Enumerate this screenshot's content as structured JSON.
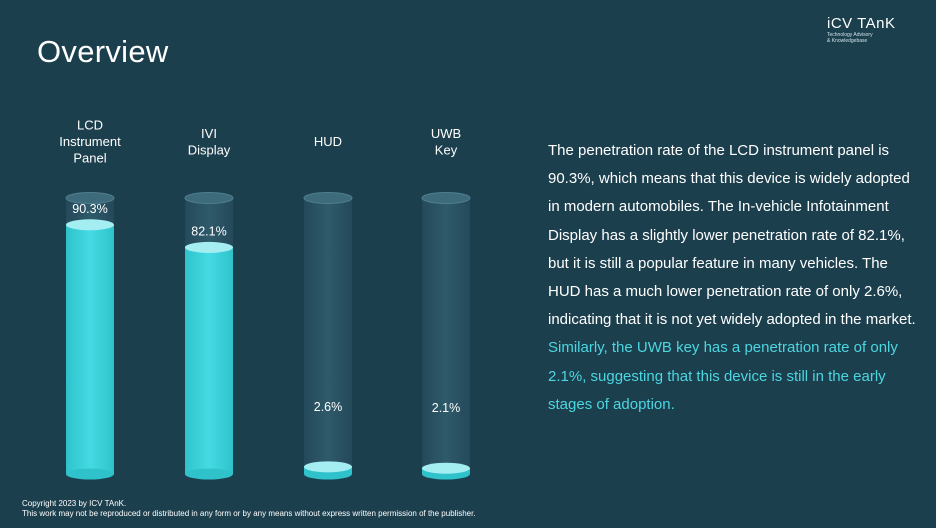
{
  "page": {
    "title": "Overview",
    "logo": {
      "name": "iCV TAnK",
      "tagline_line1": "Technology Advisory",
      "tagline_line2": "& Knowledgebase"
    }
  },
  "description": {
    "part1": "The penetration rate of the LCD instrument panel is 90.3%, which means that this device is widely adopted in modern automobiles. The In-vehicle Infotainment Display has a slightly lower penetration rate of 82.1%, but it is still a popular feature in many vehicles. The HUD has a much lower penetration rate of only 2.6%, indicating that it is not yet widely adopted in the market.",
    "part2": "Similarly, the UWB key has a penetration rate of only 2.1%, suggesting that this device is still in the early stages of adoption."
  },
  "footer": {
    "line1": "Copyright  2023 by ICV TAnK.",
    "line2": "This work may not be reproduced or distributed in any form or by any means without express written permission of the publisher."
  },
  "chart_data": {
    "type": "bar",
    "title": "",
    "xlabel": "",
    "ylabel": "",
    "ylim": [
      0,
      100
    ],
    "categories": [
      [
        "LCD",
        "Instrument",
        "Panel"
      ],
      [
        "IVI",
        "Display"
      ],
      [
        "HUD"
      ],
      [
        "UWB",
        "Key"
      ]
    ],
    "values": [
      90.3,
      82.1,
      2.6,
      2.1
    ],
    "value_labels": [
      "90.3%",
      "82.1%",
      "2.6%",
      "2.1%"
    ],
    "colors": {
      "fill": "#3fd3db",
      "fill_top": "#a4eef2",
      "track": "#2b5565",
      "background": "#1c3f4e"
    }
  }
}
